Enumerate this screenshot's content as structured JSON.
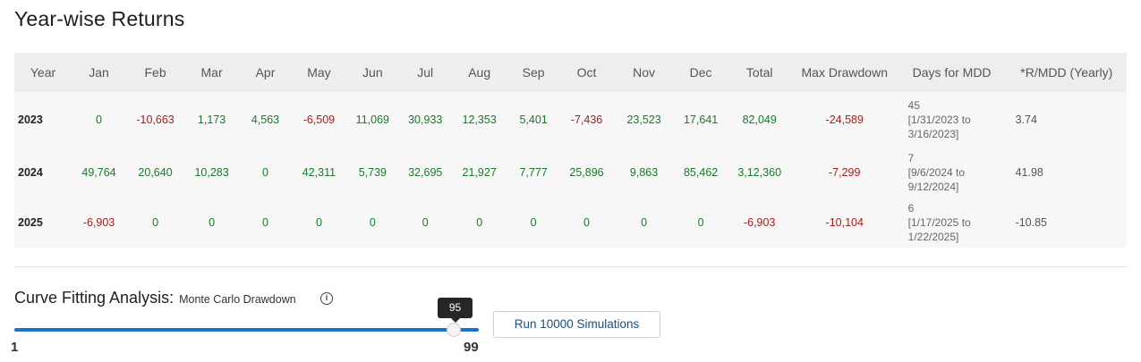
{
  "page_title": "Year-wise Returns",
  "table": {
    "headers": [
      "Year",
      "Jan",
      "Feb",
      "Mar",
      "Apr",
      "May",
      "Jun",
      "Jul",
      "Aug",
      "Sep",
      "Oct",
      "Nov",
      "Dec",
      "Total",
      "Max Drawdown",
      "Days for MDD",
      "*R/MDD (Yearly)"
    ],
    "rows": [
      {
        "year": "2023",
        "months": [
          "0",
          "-10,663",
          "1,173",
          "4,563",
          "-6,509",
          "11,069",
          "30,933",
          "12,353",
          "5,401",
          "-7,436",
          "23,523",
          "17,641"
        ],
        "total": "82,049",
        "max_drawdown": "-24,589",
        "days_count": "45",
        "days_range": "[1/31/2023 to 3/16/2023]",
        "r_mdd": "3.74"
      },
      {
        "year": "2024",
        "months": [
          "49,764",
          "20,640",
          "10,283",
          "0",
          "42,311",
          "5,739",
          "32,695",
          "21,927",
          "7,777",
          "25,896",
          "9,863",
          "85,462"
        ],
        "total": "3,12,360",
        "max_drawdown": "-7,299",
        "days_count": "7",
        "days_range": "[9/6/2024 to 9/12/2024]",
        "r_mdd": "41.98"
      },
      {
        "year": "2025",
        "months": [
          "-6,903",
          "0",
          "0",
          "0",
          "0",
          "0",
          "0",
          "0",
          "0",
          "0",
          "0",
          "0"
        ],
        "total": "-6,903",
        "max_drawdown": "-10,104",
        "days_count": "6",
        "days_range": "[1/17/2025 to 1/22/2025]",
        "r_mdd": "-10.85"
      }
    ]
  },
  "curve_fitting": {
    "title": "Curve Fitting Analysis:",
    "subtitle": "Monte Carlo Drawdown",
    "info_icon": "info-icon",
    "slider": {
      "min": "1",
      "max": "99",
      "value": "95"
    },
    "run_button_label": "Run 10000 Simulations"
  },
  "colors": {
    "positive": "#1a7a2a",
    "negative": "#a31f1f",
    "accent": "#1a73c8"
  }
}
